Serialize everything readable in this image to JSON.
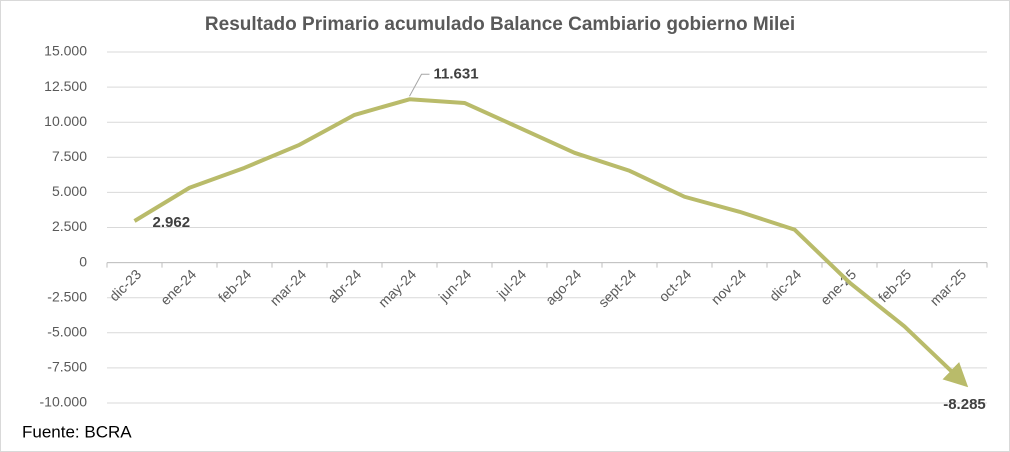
{
  "chart_data": {
    "type": "line",
    "title": "Resultado Primario acumulado  Balance Cambiario gobierno Milei",
    "source": "Fuente: BCRA",
    "categories": [
      "dic-23",
      "ene-24",
      "feb-24",
      "mar-24",
      "abr-24",
      "may-24",
      "jun-24",
      "jul-24",
      "ago-24",
      "sept-24",
      "oct-24",
      "nov-24",
      "dic-24",
      "ene-25",
      "feb-25",
      "mar-25"
    ],
    "series": [
      {
        "name": "Resultado Primario acumulado",
        "color": "#b9bb6a",
        "values": [
          2962,
          5330,
          6750,
          8390,
          10520,
          11631,
          11370,
          9600,
          7820,
          6540,
          4690,
          3620,
          2350,
          -1420,
          -4550,
          -8285
        ],
        "value_labels": [
          "2.962",
          null,
          null,
          null,
          null,
          "11.631",
          null,
          null,
          null,
          null,
          null,
          null,
          null,
          null,
          null,
          "-8.285"
        ]
      }
    ],
    "ylim": [
      -10000,
      15000
    ],
    "yticks": [
      {
        "value": -10000,
        "label": "-10.000"
      },
      {
        "value": -7500,
        "label": "-7.500"
      },
      {
        "value": -5000,
        "label": "-5.000"
      },
      {
        "value": -2500,
        "label": "-2.500"
      },
      0,
      {
        "value": 2500,
        "label": "2.500"
      },
      {
        "value": 5000,
        "label": "5.000"
      },
      {
        "value": 7500,
        "label": "7.500"
      },
      {
        "value": 10000,
        "label": "10.000"
      },
      {
        "value": 12500,
        "label": "12.500"
      },
      {
        "value": 15000,
        "label": "15.000"
      }
    ],
    "grid": true
  }
}
